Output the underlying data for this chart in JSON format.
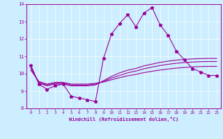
{
  "xlabel": "Windchill (Refroidissement éolien,°C)",
  "background_color": "#cceeff",
  "line_color": "#990099",
  "xlim": [
    -0.5,
    23.5
  ],
  "ylim": [
    8,
    14
  ],
  "xticks": [
    0,
    1,
    2,
    3,
    4,
    5,
    6,
    7,
    8,
    9,
    10,
    11,
    12,
    13,
    14,
    15,
    16,
    17,
    18,
    19,
    20,
    21,
    22,
    23
  ],
  "yticks": [
    8,
    9,
    10,
    11,
    12,
    13,
    14
  ],
  "main_y": [
    10.5,
    9.4,
    9.1,
    9.3,
    9.4,
    8.7,
    8.6,
    8.5,
    8.4,
    10.9,
    12.3,
    12.9,
    13.4,
    12.7,
    13.5,
    13.8,
    12.8,
    12.2,
    11.3,
    10.8,
    10.3,
    10.1,
    9.9,
    9.9
  ],
  "smooth1_y": [
    10.4,
    9.45,
    9.3,
    9.4,
    9.4,
    9.3,
    9.3,
    9.3,
    9.35,
    9.6,
    9.85,
    10.05,
    10.2,
    10.3,
    10.45,
    10.55,
    10.65,
    10.72,
    10.78,
    10.82,
    10.85,
    10.87,
    10.88,
    10.88
  ],
  "smooth2_y": [
    10.3,
    9.5,
    9.35,
    9.45,
    9.45,
    9.35,
    9.35,
    9.35,
    9.4,
    9.55,
    9.75,
    9.9,
    10.05,
    10.15,
    10.28,
    10.38,
    10.47,
    10.54,
    10.6,
    10.64,
    10.67,
    10.69,
    10.7,
    10.7
  ],
  "smooth3_y": [
    10.2,
    9.55,
    9.4,
    9.5,
    9.5,
    9.4,
    9.4,
    9.4,
    9.45,
    9.52,
    9.65,
    9.77,
    9.88,
    9.96,
    10.06,
    10.14,
    10.21,
    10.27,
    10.32,
    10.36,
    10.39,
    10.41,
    10.42,
    10.42
  ]
}
